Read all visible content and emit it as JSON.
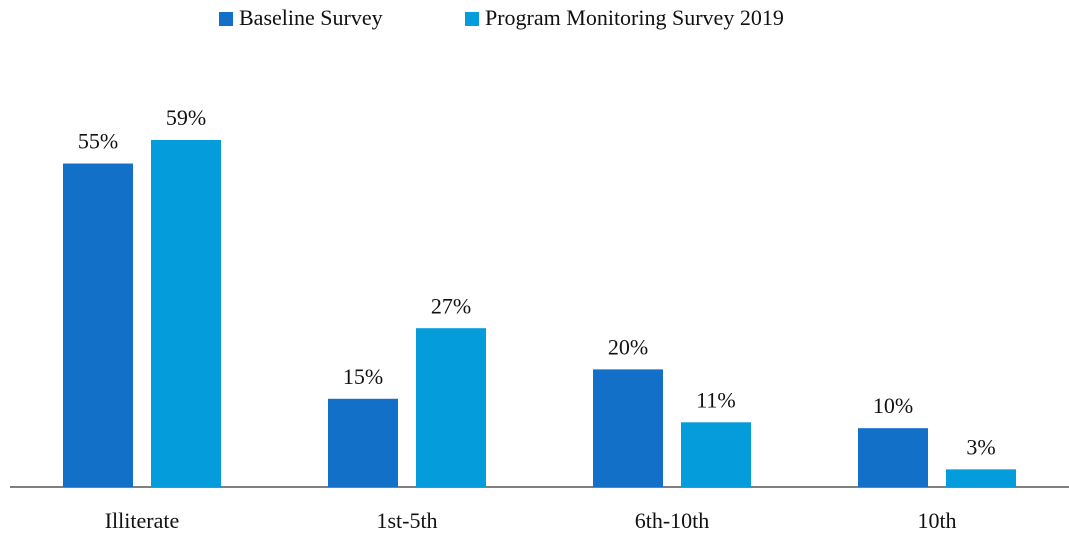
{
  "chart_data": {
    "type": "bar",
    "categories": [
      "Illiterate",
      "1st-5th",
      "6th-10th",
      "10th"
    ],
    "series": [
      {
        "name": "Baseline Survey",
        "color": "#1270c8",
        "values": [
          55,
          15,
          20,
          10
        ],
        "value_labels": [
          "55%",
          "15%",
          "20%",
          "10%"
        ]
      },
      {
        "name": "Program Monitoring Survey 2019",
        "color": "#049cdb",
        "values": [
          59,
          27,
          11,
          3
        ],
        "value_labels": [
          "59%",
          "27%",
          "11%",
          "3%"
        ]
      }
    ],
    "legend": "top"
  }
}
